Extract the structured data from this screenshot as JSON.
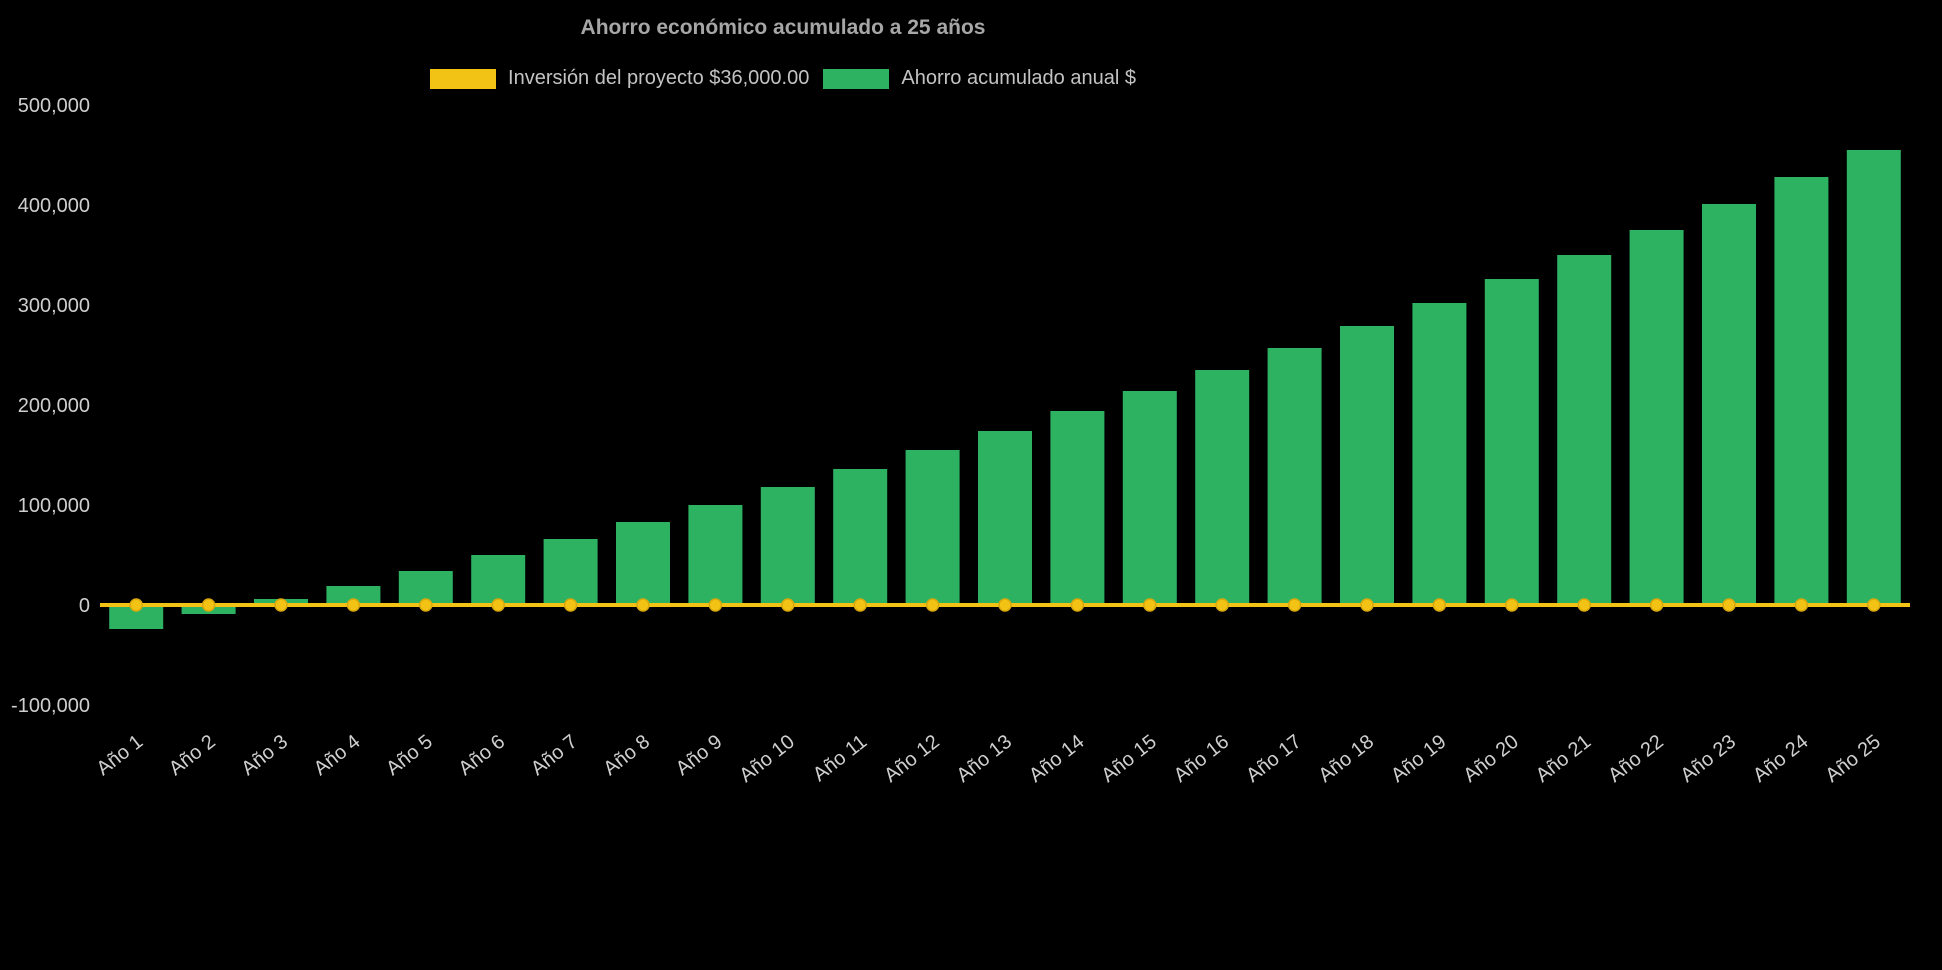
{
  "colors": {
    "background": "#000000",
    "bar": "#2cb261",
    "line": "#f2c314",
    "marker_stroke": "#d9a80c",
    "tick_text": "#cfcfcf",
    "title_text": "#a6a6a6",
    "legend_text": "#c3c3c3"
  },
  "chart_data": {
    "type": "bar",
    "title": "Ahorro económico acumulado a 25 años",
    "categories": [
      "Año 1",
      "Año 2",
      "Año 3",
      "Año 4",
      "Año 5",
      "Año 6",
      "Año 7",
      "Año 8",
      "Año 9",
      "Año 10",
      "Año 11",
      "Año 12",
      "Año 13",
      "Año 14",
      "Año 15",
      "Año 16",
      "Año 17",
      "Año 18",
      "Año 19",
      "Año 20",
      "Año 21",
      "Año 22",
      "Año 23",
      "Año 24",
      "Año 25"
    ],
    "series": [
      {
        "name": "Inversión del proyecto $36,000.00",
        "type": "line",
        "color": "#f2c314",
        "values": [
          0,
          0,
          0,
          0,
          0,
          0,
          0,
          0,
          0,
          0,
          0,
          0,
          0,
          0,
          0,
          0,
          0,
          0,
          0,
          0,
          0,
          0,
          0,
          0,
          0
        ]
      },
      {
        "name": "Ahorro acumulado anual $",
        "type": "bar",
        "color": "#2cb261",
        "values": [
          -24000,
          -9000,
          6000,
          19000,
          34000,
          50000,
          66000,
          83000,
          100000,
          118000,
          136000,
          155000,
          174000,
          194000,
          214000,
          235000,
          257000,
          279000,
          302000,
          326000,
          350000,
          375000,
          401000,
          428000,
          455000
        ]
      }
    ],
    "ylim": [
      -100000,
      500000
    ],
    "yticks": [
      {
        "value": 500000,
        "label": "500,000"
      },
      {
        "value": 400000,
        "label": "400,000"
      },
      {
        "value": 300000,
        "label": "300,000"
      },
      {
        "value": 200000,
        "label": "200,000"
      },
      {
        "value": 100000,
        "label": "100,000"
      },
      {
        "value": 0,
        "label": "0"
      },
      {
        "value": -100000,
        "label": "-100,000"
      }
    ],
    "grid": false,
    "legend_position": "top"
  }
}
